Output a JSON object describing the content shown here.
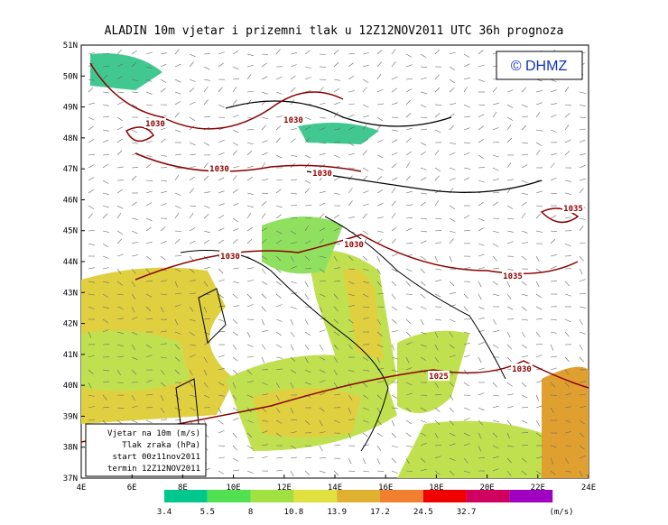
{
  "header": {
    "title": "ALADIN 10m vjetar i prizemni tlak u 12Z12NOV2011 UTC 36h prognoza"
  },
  "logo": "© DHMZ",
  "lat_labels": [
    "51N",
    "50N",
    "49N",
    "48N",
    "47N",
    "46N",
    "45N",
    "44N",
    "43N",
    "42N",
    "41N",
    "40N",
    "39N",
    "38N",
    "37N"
  ],
  "lon_labels": [
    "4E",
    "6E",
    "8E",
    "10E",
    "12E",
    "14E",
    "16E",
    "18E",
    "20E",
    "22E",
    "24E"
  ],
  "isobar_labels": [
    "1030",
    "1030",
    "1030",
    "1030",
    "1035",
    "1030",
    "1030",
    "1035",
    "1025",
    "1030"
  ],
  "info_box": [
    "Vjetar na 10m (m/s)",
    "Tlak zraka (hPa)",
    "start 00z11nov2011",
    "termin 12Z12NOV2011"
  ],
  "colorbar": {
    "levels": [
      "3.4",
      "5.5",
      "8",
      "10.8",
      "13.9",
      "17.2",
      "24.5",
      "32.7"
    ],
    "unit": "(m/s)"
  }
}
